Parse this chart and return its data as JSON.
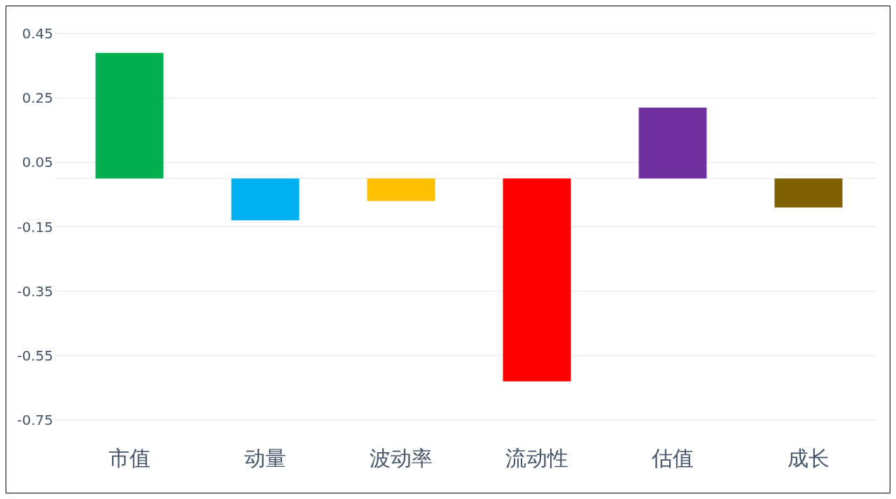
{
  "chart_data": {
    "type": "bar",
    "categories": [
      "市值",
      "动量",
      "波动率",
      "流动性",
      "估值",
      "成长"
    ],
    "values": [
      0.39,
      -0.13,
      -0.07,
      -0.63,
      0.22,
      -0.09
    ],
    "colors": [
      "#00b050",
      "#00b0f0",
      "#ffc000",
      "#ff0000",
      "#7030a0",
      "#7f6000"
    ],
    "ylim": [
      -0.75,
      0.45
    ],
    "yticks": [
      -0.75,
      -0.55,
      -0.35,
      -0.15,
      0.05,
      0.25,
      0.45
    ],
    "grid": "y"
  }
}
